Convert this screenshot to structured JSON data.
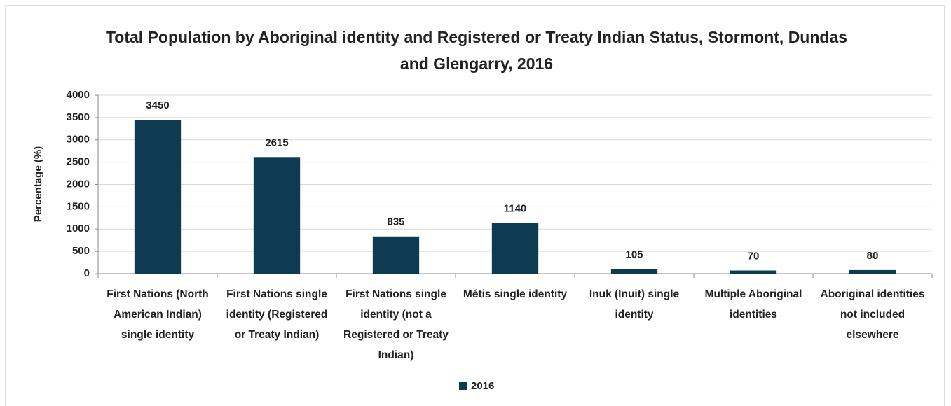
{
  "chart_data": {
    "type": "bar",
    "title": "Total Population by Aboriginal identity and Registered or Treaty Indian Status, Stormont, Dundas and Glengarry, 2016",
    "y_label": "Percentage (%)",
    "categories": [
      "First Nations (North American Indian) single identity",
      "First Nations single identity (Registered or Treaty Indian)",
      "First Nations single identity (not a Registered or Treaty Indian)",
      "Métis single identity",
      "Inuk (Inuit) single identity",
      "Multiple Aboriginal identities",
      "Aboriginal identities not included elsewhere"
    ],
    "series": [
      {
        "name": "2016",
        "color": "#0e3a52",
        "values": [
          3450,
          2615,
          835,
          1140,
          105,
          70,
          80
        ]
      }
    ],
    "ylim": [
      0,
      4000
    ],
    "yticks": [
      0,
      500,
      1000,
      1500,
      2000,
      2500,
      3000,
      3500,
      4000
    ],
    "grid": true,
    "legend": "bottom"
  }
}
